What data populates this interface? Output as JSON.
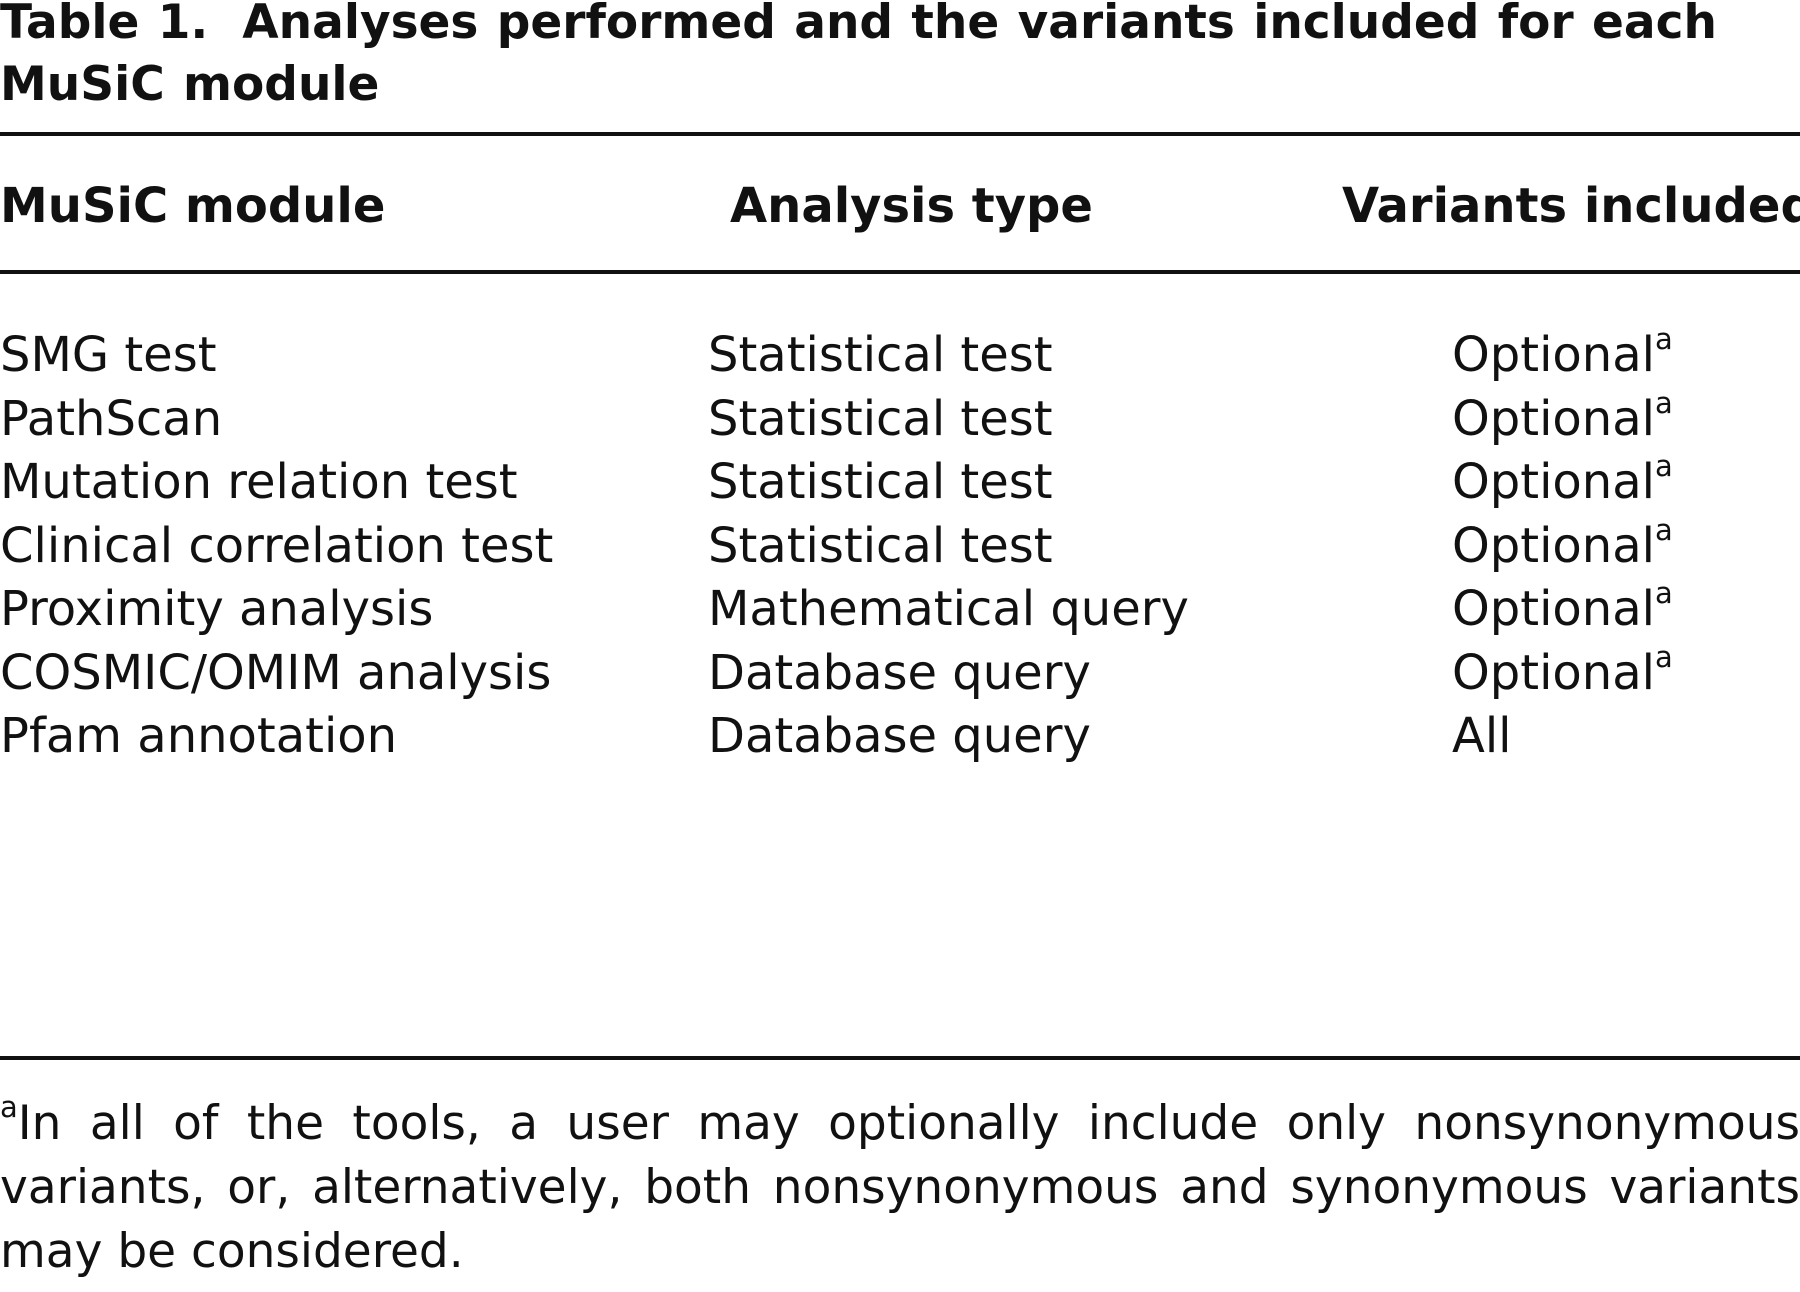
{
  "table": {
    "caption_label": "Table 1.",
    "caption_text": "Analyses performed and the variants included for each MuSiC module",
    "headers": [
      "MuSiC module",
      "Analysis type",
      "Variants included"
    ],
    "rows": [
      {
        "module": "SMG test",
        "analysis": "Statistical test",
        "variants": "Optional",
        "mark": "a"
      },
      {
        "module": "PathScan",
        "analysis": "Statistical test",
        "variants": "Optional",
        "mark": "a"
      },
      {
        "module": "Mutation relation test",
        "analysis": "Statistical test",
        "variants": "Optional",
        "mark": "a"
      },
      {
        "module": "Clinical correlation test",
        "analysis": "Statistical test",
        "variants": "Optional",
        "mark": "a"
      },
      {
        "module": "Proximity analysis",
        "analysis": "Mathematical query",
        "variants": "Optional",
        "mark": "a"
      },
      {
        "module": "COSMIC/OMIM analysis",
        "analysis": "Database query",
        "variants": "Optional",
        "mark": "a"
      },
      {
        "module": "Pfam annotation",
        "analysis": "Database query",
        "variants": "All",
        "mark": ""
      }
    ],
    "footnote": {
      "mark": "a",
      "text": "In all of the tools, a user may optionally include only nonsynonymous variants, or, alternatively, both nonsynonymous and synonymous variants may be considered."
    }
  }
}
